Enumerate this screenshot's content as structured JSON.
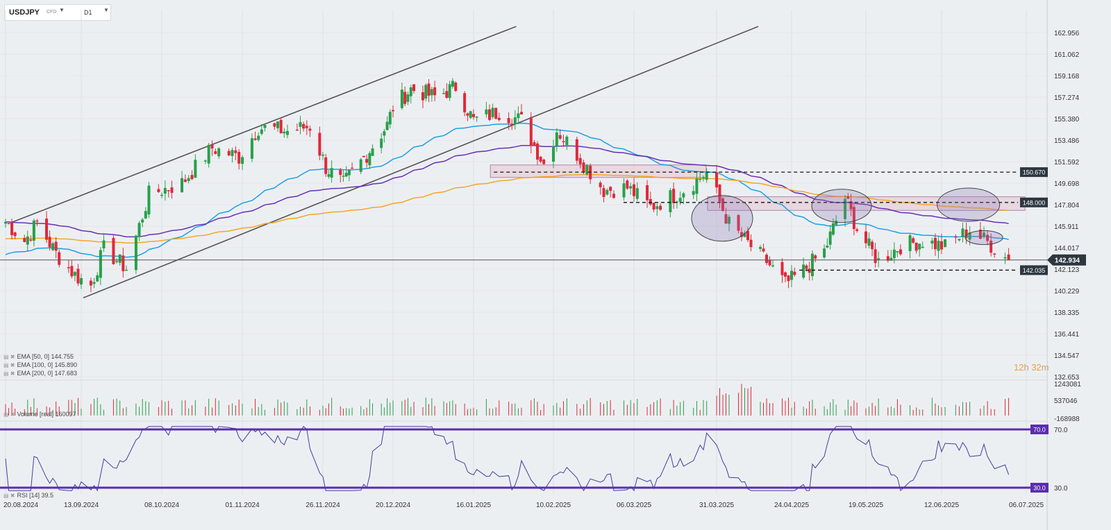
{
  "toolbar": {
    "symbol": "USDJPY",
    "instrument_type": "CFD",
    "dropdown_icon": "caret-down-icon",
    "timeframe": "D1"
  },
  "timer": {
    "hours": "12",
    "hours_unit": "h",
    "minutes": "32",
    "minutes_unit": "m"
  },
  "colors": {
    "background": "#eceff2",
    "bull_candle": "#27a04a",
    "bear_candle": "#e0283a",
    "ema50": "#1ba1e2",
    "ema100": "#6a2fb5",
    "ema200": "#f5a623",
    "rsi_line": "#3f3f9e",
    "rsi_levels": "#5b2db0",
    "current_price_label": "#2d3740",
    "zone_fill": "#e6c4d2"
  },
  "price_axis": [
    "162.956",
    "161.062",
    "159.168",
    "157.274",
    "155.380",
    "153.486",
    "151.592",
    "149.698",
    "147.804",
    "145.911",
    "144.017",
    "142.123",
    "140.229",
    "138.335",
    "136.441",
    "134.547",
    "132.653"
  ],
  "price_tags": {
    "resistance_1": "150.670",
    "resistance_2": "148.000",
    "current": "142.934",
    "support": "142.035"
  },
  "volume_axis": [
    "1243081",
    "537046",
    "-168988"
  ],
  "rsi_axis": [
    "70.0",
    "30.0"
  ],
  "date_axis": [
    "20.08.2024",
    "13.09.2024",
    "08.10.2024",
    "01.11.2024",
    "26.11.2024",
    "20.12.2024",
    "16.01.2025",
    "10.02.2025",
    "06.03.2025",
    "31.03.2025",
    "24.04.2025",
    "19.05.2025",
    "12.06.2025",
    "06.07.2025"
  ],
  "legends": {
    "ema50": "EMA [50, 0] 144.755",
    "ema100": "EMA [100, 0] 145.890",
    "ema200": "EMA [200, 0] 147.683",
    "volume": "Volume [real] 160097",
    "rsi": "RSI [14] 39.5"
  },
  "chart_data": {
    "type": "candlestick",
    "symbol": "USDJPY",
    "timeframe": "D1",
    "ylim": [
      132.653,
      162.956
    ],
    "x_range": [
      "20.08.2024",
      "06.07.2025"
    ],
    "price_anchors": [
      {
        "date": "20.08.2024",
        "close": 146.3
      },
      {
        "date": "26.08.2024",
        "close": 144.6
      },
      {
        "date": "30.08.2024",
        "close": 146.2
      },
      {
        "date": "05.09.2024",
        "close": 143.5
      },
      {
        "date": "11.09.2024",
        "close": 141.6
      },
      {
        "date": "16.09.2024",
        "close": 140.7
      },
      {
        "date": "20.09.2024",
        "close": 143.9
      },
      {
        "date": "27.09.2024",
        "close": 142.2
      },
      {
        "date": "04.10.2024",
        "close": 148.7
      },
      {
        "date": "14.10.2024",
        "close": 149.7
      },
      {
        "date": "23.10.2024",
        "close": 152.8
      },
      {
        "date": "31.10.2024",
        "close": 152.0
      },
      {
        "date": "06.11.2024",
        "close": 154.6
      },
      {
        "date": "15.11.2024",
        "close": 154.3
      },
      {
        "date": "22.11.2024",
        "close": 154.7
      },
      {
        "date": "27.11.2024",
        "close": 151.1
      },
      {
        "date": "03.12.2024",
        "close": 149.6
      },
      {
        "date": "10.12.2024",
        "close": 151.9
      },
      {
        "date": "18.12.2024",
        "close": 154.8
      },
      {
        "date": "20.12.2024",
        "close": 156.4
      },
      {
        "date": "26.12.2024",
        "close": 158.0
      },
      {
        "date": "03.01.2025",
        "close": 157.3
      },
      {
        "date": "10.01.2025",
        "close": 158.2
      },
      {
        "date": "16.01.2025",
        "close": 155.2
      },
      {
        "date": "24.01.2025",
        "close": 156.0
      },
      {
        "date": "31.01.2025",
        "close": 155.2
      },
      {
        "date": "07.02.2025",
        "close": 151.4
      },
      {
        "date": "11.02.2025",
        "close": 154.4
      },
      {
        "date": "18.02.2025",
        "close": 151.9
      },
      {
        "date": "25.02.2025",
        "close": 149.1
      },
      {
        "date": "04.03.2025",
        "close": 149.3
      },
      {
        "date": "11.03.2025",
        "close": 147.6
      },
      {
        "date": "20.03.2025",
        "close": 148.9
      },
      {
        "date": "28.03.2025",
        "close": 150.6
      },
      {
        "date": "04.04.2025",
        "close": 146.1
      },
      {
        "date": "10.04.2025",
        "close": 144.4
      },
      {
        "date": "16.04.2025",
        "close": 142.8
      },
      {
        "date": "22.04.2025",
        "close": 140.8
      },
      {
        "date": "28.04.2025",
        "close": 142.0
      },
      {
        "date": "05.05.2025",
        "close": 143.7
      },
      {
        "date": "12.05.2025",
        "close": 148.4
      },
      {
        "date": "16.05.2025",
        "close": 145.7
      },
      {
        "date": "23.05.2025",
        "close": 142.8
      },
      {
        "date": "30.05.2025",
        "close": 144.2
      },
      {
        "date": "06.06.2025",
        "close": 144.6
      },
      {
        "date": "13.06.2025",
        "close": 144.1
      },
      {
        "date": "20.06.2025",
        "close": 145.6
      },
      {
        "date": "25.06.2025",
        "close": 144.5
      },
      {
        "date": "01.07.2025",
        "close": 142.934
      }
    ],
    "ema_last": {
      "EMA 50": 144.755,
      "EMA 100": 145.89,
      "EMA 200": 147.683
    },
    "horizontal_levels": [
      150.67,
      148.0,
      142.934,
      142.035
    ],
    "rsi_last": 39.5,
    "rsi_levels": [
      70,
      30
    ],
    "volume_last": 160097
  }
}
